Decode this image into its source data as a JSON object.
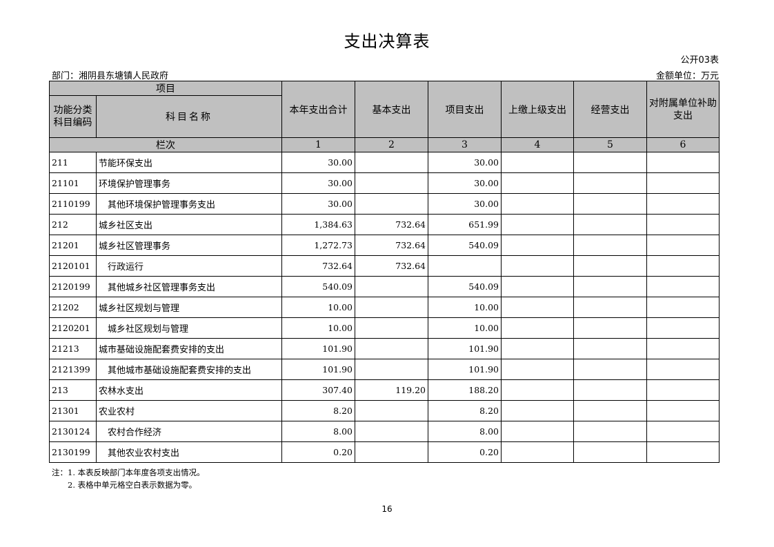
{
  "title": "支出决算表",
  "table_no": "公开03表",
  "department": "部门：湘阴县东塘镇人民政府",
  "unit": "金额单位：万元",
  "header": {
    "item": "项目",
    "code": "功能分类科目编码",
    "name": "科目名称",
    "cols": [
      "本年支出合计",
      "基本支出",
      "项目支出",
      "上缴上级支出",
      "经营支出",
      "对附属单位补助支出"
    ],
    "row_label": "栏次",
    "col_numbers": [
      "1",
      "2",
      "3",
      "4",
      "5",
      "6"
    ]
  },
  "rows": [
    {
      "code": "211",
      "name": "节能环保支出",
      "indent": false,
      "v": [
        "30.00",
        "",
        "30.00",
        "",
        "",
        ""
      ]
    },
    {
      "code": "21101",
      "name": "环境保护管理事务",
      "indent": false,
      "v": [
        "30.00",
        "",
        "30.00",
        "",
        "",
        ""
      ]
    },
    {
      "code": "2110199",
      "name": "其他环境保护管理事务支出",
      "indent": true,
      "v": [
        "30.00",
        "",
        "30.00",
        "",
        "",
        ""
      ]
    },
    {
      "code": "212",
      "name": "城乡社区支出",
      "indent": false,
      "v": [
        "1,384.63",
        "732.64",
        "651.99",
        "",
        "",
        ""
      ]
    },
    {
      "code": "21201",
      "name": "城乡社区管理事务",
      "indent": false,
      "v": [
        "1,272.73",
        "732.64",
        "540.09",
        "",
        "",
        ""
      ]
    },
    {
      "code": "2120101",
      "name": "行政运行",
      "indent": true,
      "v": [
        "732.64",
        "732.64",
        "",
        "",
        "",
        ""
      ]
    },
    {
      "code": "2120199",
      "name": "其他城乡社区管理事务支出",
      "indent": true,
      "v": [
        "540.09",
        "",
        "540.09",
        "",
        "",
        ""
      ]
    },
    {
      "code": "21202",
      "name": "城乡社区规划与管理",
      "indent": false,
      "v": [
        "10.00",
        "",
        "10.00",
        "",
        "",
        ""
      ]
    },
    {
      "code": "2120201",
      "name": "城乡社区规划与管理",
      "indent": true,
      "v": [
        "10.00",
        "",
        "10.00",
        "",
        "",
        ""
      ]
    },
    {
      "code": "21213",
      "name": "城市基础设施配套费安排的支出",
      "indent": false,
      "v": [
        "101.90",
        "",
        "101.90",
        "",
        "",
        ""
      ]
    },
    {
      "code": "2121399",
      "name": "其他城市基础设施配套费安排的支出",
      "indent": true,
      "v": [
        "101.90",
        "",
        "101.90",
        "",
        "",
        ""
      ]
    },
    {
      "code": "213",
      "name": "农林水支出",
      "indent": false,
      "v": [
        "307.40",
        "119.20",
        "188.20",
        "",
        "",
        ""
      ]
    },
    {
      "code": "21301",
      "name": "农业农村",
      "indent": false,
      "v": [
        "8.20",
        "",
        "8.20",
        "",
        "",
        ""
      ]
    },
    {
      "code": "2130124",
      "name": "农村合作经济",
      "indent": true,
      "v": [
        "8.00",
        "",
        "8.00",
        "",
        "",
        ""
      ]
    },
    {
      "code": "2130199",
      "name": "其他农业农村支出",
      "indent": true,
      "v": [
        "0.20",
        "",
        "0.20",
        "",
        "",
        ""
      ]
    }
  ],
  "notes": [
    "注：1. 本表反映部门本年度各项支出情况。",
    "2. 表格中单元格空白表示数据为零。"
  ],
  "page_number": "16"
}
